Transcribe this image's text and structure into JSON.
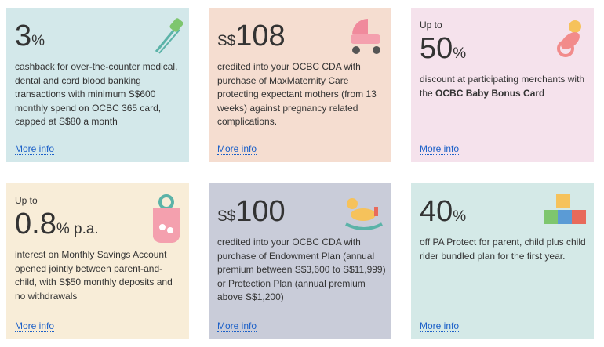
{
  "cards": [
    {
      "figure": "3",
      "unit": "%",
      "description": "cashback for over-the-counter medical, dental and cord blood banking transactions with minimum S$600 monthly spend on OCBC 365 card, capped at S$80 a month",
      "link": "More info"
    },
    {
      "currency": "S$",
      "figure": "108",
      "description": "credited into your OCBC CDA with purchase of MaxMaternity Care protecting expectant mothers (from 13 weeks) against pregnancy related complications.",
      "link": "More info"
    },
    {
      "prefix": "Up to",
      "figure": "50",
      "unit": "%",
      "description": "discount at participating merchants with the",
      "description_bold": "OCBC Baby Bonus Card",
      "link": "More info"
    },
    {
      "prefix": "Up to",
      "figure": "0.8",
      "unit": "% p.a.",
      "description": "interest on Monthly Savings Account opened jointly between parent-and-child, with S$50 monthly deposits and no withdrawals",
      "link": "More info"
    },
    {
      "currency": "S$",
      "figure": "100",
      "description": "credited into your OCBC CDA with purchase of Endowment Plan (annual premium between S$3,600 to S$11,999) or Protection Plan (annual premium above S$1,200)",
      "link": "More info"
    },
    {
      "figure": "40",
      "unit": "%",
      "description": "off PA Protect for parent, child plus child rider bundled plan for the first year.",
      "link": "More info"
    }
  ]
}
